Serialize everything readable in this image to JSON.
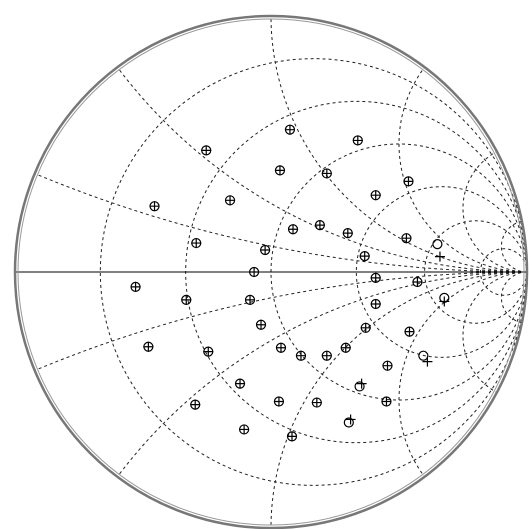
{
  "chart_data": {
    "type": "smith",
    "xlim": [
      -1,
      1
    ],
    "ylim": [
      -1,
      1
    ],
    "grid": true,
    "resistance_circles": [
      0.2,
      0.5,
      1,
      2,
      4,
      10
    ],
    "reactance_arcs": [
      0.2,
      0.5,
      1,
      2,
      4,
      10,
      -0.2,
      -0.5,
      -1,
      -2,
      -4,
      -10
    ],
    "series": [
      {
        "marker": "circle",
        "color": "#000000",
        "x": [
          -0.253,
          0.074,
          0.339,
          0.035,
          0.218,
          0.537,
          -0.455,
          -0.16,
          0.409,
          0.086,
          0.191,
          0.3,
          0.529,
          -0.292,
          -0.023,
          0.366,
          0.65,
          -0.066,
          0.409,
          0.572,
          -0.529,
          -0.331,
          -0.082,
          0.409,
          0.677,
          -0.039,
          0.37,
          0.541,
          -0.479,
          -0.245,
          0.039,
          0.117,
          0.218,
          0.292,
          0.455,
          0.595,
          -0.121,
          0.346,
          -0.296,
          0.031,
          0.179,
          0.451,
          -0.105,
          0.082,
          0.304
        ],
        "values": [
          0.475,
          0.556,
          0.514,
          0.397,
          0.385,
          0.354,
          0.257,
          0.28,
          0.3,
          0.167,
          0.183,
          0.152,
          0.132,
          0.113,
          0.086,
          0.062,
          0.109,
          0,
          -0.023,
          -0.039,
          -0.058,
          -0.109,
          -0.109,
          -0.125,
          -0.101,
          -0.206,
          -0.218,
          -0.233,
          -0.292,
          -0.311,
          -0.296,
          -0.327,
          -0.327,
          -0.296,
          -0.366,
          -0.327,
          -0.436,
          -0.447,
          -0.518,
          -0.506,
          -0.51,
          -0.506,
          -0.615,
          -0.642,
          -0.588
        ]
      },
      {
        "marker": "plus",
        "color": "#000000",
        "x": [
          -0.253,
          0.074,
          0.339,
          0.035,
          0.218,
          0.537,
          -0.455,
          -0.16,
          0.409,
          0.086,
          0.191,
          0.3,
          0.529,
          -0.292,
          -0.023,
          0.366,
          0.66,
          -0.066,
          0.409,
          0.572,
          -0.529,
          -0.331,
          -0.082,
          0.409,
          0.677,
          -0.039,
          0.37,
          0.541,
          -0.479,
          -0.245,
          0.039,
          0.117,
          0.218,
          0.292,
          0.455,
          0.611,
          -0.121,
          0.354,
          -0.296,
          0.031,
          0.179,
          0.451,
          -0.105,
          0.082,
          0.311
        ],
        "values": [
          0.475,
          0.556,
          0.514,
          0.397,
          0.385,
          0.354,
          0.257,
          0.28,
          0.3,
          0.167,
          0.183,
          0.152,
          0.132,
          0.113,
          0.086,
          0.062,
          0.06,
          0,
          -0.023,
          -0.039,
          -0.058,
          -0.109,
          -0.109,
          -0.125,
          -0.115,
          -0.206,
          -0.218,
          -0.233,
          -0.292,
          -0.311,
          -0.296,
          -0.327,
          -0.327,
          -0.296,
          -0.366,
          -0.35,
          -0.436,
          -0.436,
          -0.518,
          -0.506,
          -0.51,
          -0.506,
          -0.615,
          -0.642,
          -0.576
        ]
      }
    ]
  }
}
